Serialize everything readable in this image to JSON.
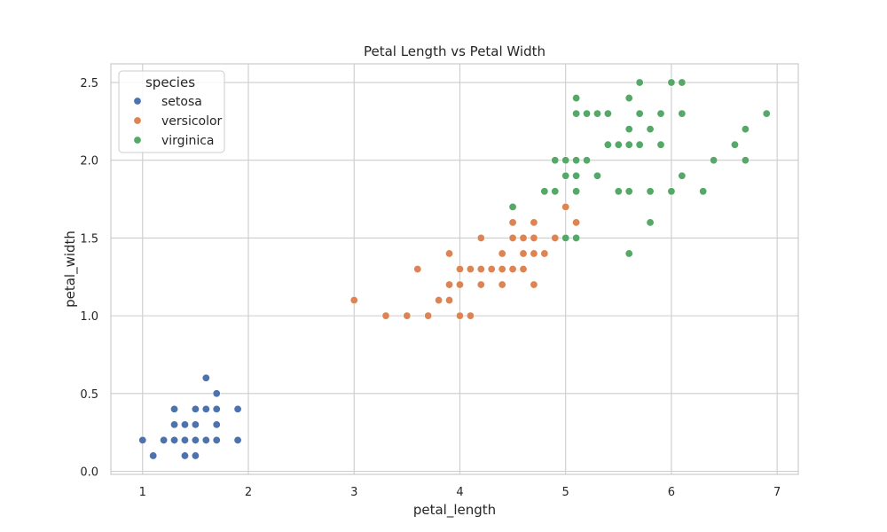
{
  "chart_data": {
    "type": "scatter",
    "title": "Petal Length vs Petal Width",
    "xlabel": "petal_length",
    "ylabel": "petal_width",
    "xlim": [
      0.7,
      7.2
    ],
    "ylim": [
      -0.02,
      2.62
    ],
    "xticks": [
      1,
      2,
      3,
      4,
      5,
      6,
      7
    ],
    "xtick_labels": [
      "1",
      "2",
      "3",
      "4",
      "5",
      "6",
      "7"
    ],
    "yticks": [
      0.0,
      0.5,
      1.0,
      1.5,
      2.0,
      2.5
    ],
    "ytick_labels": [
      "0.0",
      "0.5",
      "1.0",
      "1.5",
      "2.0",
      "2.5"
    ],
    "grid": true,
    "legend": {
      "title": "species",
      "placement": "top-left"
    },
    "series": [
      {
        "name": "setosa",
        "color": "#4c72b0",
        "points": [
          [
            1.0,
            0.2
          ],
          [
            1.1,
            0.1
          ],
          [
            1.2,
            0.2
          ],
          [
            1.3,
            0.2
          ],
          [
            1.3,
            0.3
          ],
          [
            1.3,
            0.4
          ],
          [
            1.4,
            0.1
          ],
          [
            1.4,
            0.2
          ],
          [
            1.4,
            0.3
          ],
          [
            1.5,
            0.1
          ],
          [
            1.5,
            0.2
          ],
          [
            1.5,
            0.3
          ],
          [
            1.5,
            0.4
          ],
          [
            1.6,
            0.2
          ],
          [
            1.6,
            0.4
          ],
          [
            1.6,
            0.6
          ],
          [
            1.7,
            0.2
          ],
          [
            1.7,
            0.3
          ],
          [
            1.7,
            0.4
          ],
          [
            1.7,
            0.5
          ],
          [
            1.9,
            0.2
          ],
          [
            1.9,
            0.4
          ]
        ]
      },
      {
        "name": "versicolor",
        "color": "#dd8452",
        "points": [
          [
            3.0,
            1.1
          ],
          [
            3.3,
            1.0
          ],
          [
            3.5,
            1.0
          ],
          [
            3.6,
            1.3
          ],
          [
            3.7,
            1.0
          ],
          [
            3.8,
            1.1
          ],
          [
            3.9,
            1.1
          ],
          [
            3.9,
            1.2
          ],
          [
            3.9,
            1.4
          ],
          [
            4.0,
            1.0
          ],
          [
            4.0,
            1.2
          ],
          [
            4.0,
            1.3
          ],
          [
            4.1,
            1.0
          ],
          [
            4.1,
            1.3
          ],
          [
            4.2,
            1.2
          ],
          [
            4.2,
            1.3
          ],
          [
            4.2,
            1.5
          ],
          [
            4.3,
            1.3
          ],
          [
            4.4,
            1.2
          ],
          [
            4.4,
            1.3
          ],
          [
            4.4,
            1.4
          ],
          [
            4.5,
            1.3
          ],
          [
            4.5,
            1.5
          ],
          [
            4.5,
            1.6
          ],
          [
            4.6,
            1.3
          ],
          [
            4.6,
            1.4
          ],
          [
            4.6,
            1.5
          ],
          [
            4.7,
            1.2
          ],
          [
            4.7,
            1.4
          ],
          [
            4.7,
            1.5
          ],
          [
            4.7,
            1.6
          ],
          [
            4.8,
            1.4
          ],
          [
            4.8,
            1.8
          ],
          [
            4.9,
            1.5
          ],
          [
            5.0,
            1.7
          ],
          [
            5.1,
            1.6
          ]
        ]
      },
      {
        "name": "virginica",
        "color": "#55a868",
        "points": [
          [
            4.5,
            1.7
          ],
          [
            4.8,
            1.8
          ],
          [
            4.9,
            1.8
          ],
          [
            4.9,
            2.0
          ],
          [
            5.0,
            1.5
          ],
          [
            5.0,
            1.9
          ],
          [
            5.0,
            2.0
          ],
          [
            5.1,
            1.5
          ],
          [
            5.1,
            1.8
          ],
          [
            5.1,
            1.9
          ],
          [
            5.1,
            2.0
          ],
          [
            5.1,
            2.3
          ],
          [
            5.1,
            2.4
          ],
          [
            5.2,
            2.0
          ],
          [
            5.2,
            2.3
          ],
          [
            5.3,
            1.9
          ],
          [
            5.3,
            2.3
          ],
          [
            5.4,
            2.1
          ],
          [
            5.4,
            2.3
          ],
          [
            5.5,
            1.8
          ],
          [
            5.5,
            2.1
          ],
          [
            5.6,
            1.4
          ],
          [
            5.6,
            1.8
          ],
          [
            5.6,
            2.1
          ],
          [
            5.6,
            2.2
          ],
          [
            5.6,
            2.4
          ],
          [
            5.7,
            2.1
          ],
          [
            5.7,
            2.3
          ],
          [
            5.7,
            2.5
          ],
          [
            5.8,
            1.6
          ],
          [
            5.8,
            1.8
          ],
          [
            5.8,
            2.2
          ],
          [
            5.9,
            2.1
          ],
          [
            5.9,
            2.3
          ],
          [
            6.0,
            1.8
          ],
          [
            6.0,
            2.5
          ],
          [
            6.1,
            1.9
          ],
          [
            6.1,
            2.3
          ],
          [
            6.1,
            2.5
          ],
          [
            6.3,
            1.8
          ],
          [
            6.4,
            2.0
          ],
          [
            6.6,
            2.1
          ],
          [
            6.7,
            2.0
          ],
          [
            6.7,
            2.2
          ],
          [
            6.9,
            2.3
          ]
        ]
      }
    ]
  }
}
